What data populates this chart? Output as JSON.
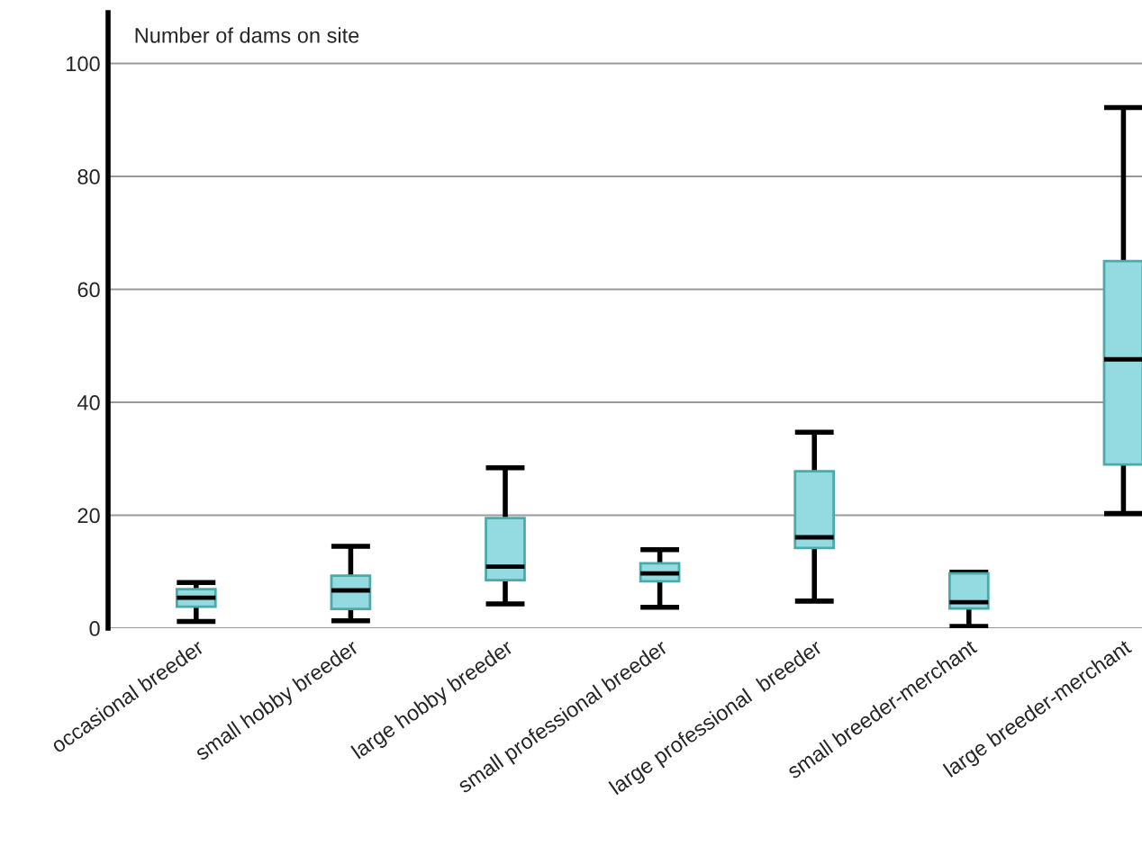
{
  "chart_data": {
    "type": "box",
    "ylabel": "Number of dams on site",
    "categories": [
      "occasional breeder",
      "small hobby breeder",
      "large hobby breeder",
      "small professional breeder",
      "large professional  breeder",
      "small breeder-merchant",
      "large breeder-merchant"
    ],
    "boxes": [
      {
        "low": 1.2,
        "q1": 3.8,
        "median": 5.4,
        "q3": 6.9,
        "high": 8.1
      },
      {
        "low": 1.3,
        "q1": 3.4,
        "median": 6.7,
        "q3": 9.3,
        "high": 14.5
      },
      {
        "low": 4.3,
        "q1": 8.5,
        "median": 10.9,
        "q3": 19.5,
        "high": 28.4
      },
      {
        "low": 3.7,
        "q1": 8.3,
        "median": 9.7,
        "q3": 11.5,
        "high": 13.9
      },
      {
        "low": 4.8,
        "q1": 14.2,
        "median": 16.1,
        "q3": 27.8,
        "high": 34.7
      },
      {
        "low": 0.3,
        "q1": 3.5,
        "median": 4.6,
        "q3": 9.7,
        "high": 9.9
      },
      {
        "low": 20.3,
        "q1": 29,
        "median": 47.6,
        "q3": 65,
        "high": 92.2
      }
    ],
    "color": "#93dbe0",
    "ylim": [
      0,
      109
    ],
    "yticks": [
      0,
      20,
      40,
      60,
      80,
      100
    ],
    "grid": "y"
  }
}
